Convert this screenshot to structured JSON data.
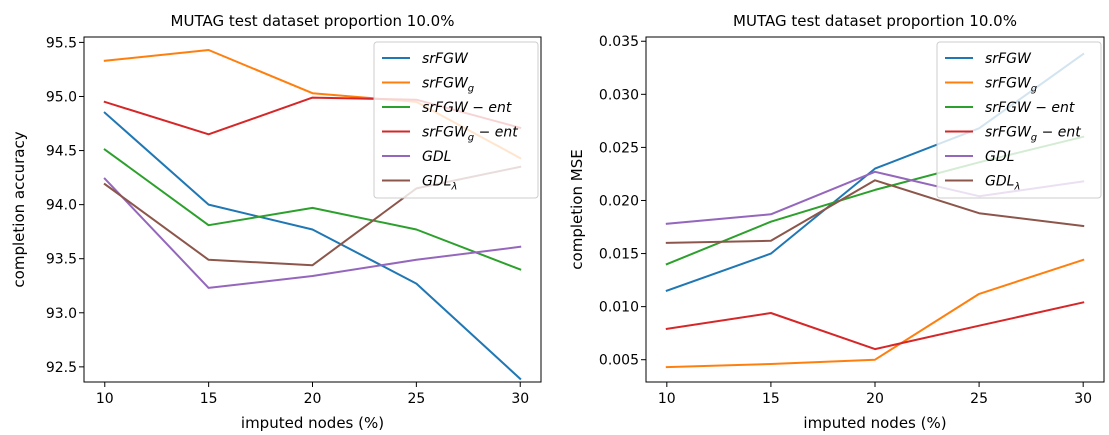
{
  "chart_data": [
    {
      "type": "line",
      "title": "MUTAG test dataset proportion 10.0%",
      "xlabel": "imputed nodes (%)",
      "ylabel": "completion accuracy",
      "x": [
        10,
        15,
        20,
        25,
        30
      ],
      "xlim": [
        9.0,
        31.0
      ],
      "ylim": [
        92.36,
        95.55
      ],
      "xticks": [
        "10",
        "15",
        "20",
        "25",
        "30"
      ],
      "yticks": [
        "92.5",
        "93.0",
        "93.5",
        "94.0",
        "94.5",
        "95.0",
        "95.5"
      ],
      "ytick_values": [
        92.5,
        93.0,
        93.5,
        94.0,
        94.5,
        95.0,
        95.5
      ],
      "legend_position": "top-right",
      "series": [
        {
          "name": "srFGW",
          "color": "#1f77b4",
          "values": [
            94.85,
            94.0,
            93.77,
            93.27,
            92.39
          ]
        },
        {
          "name": "srFGW_g",
          "color": "#ff7f0e",
          "values": [
            95.33,
            95.43,
            95.03,
            94.95,
            94.43
          ]
        },
        {
          "name": "srFGW − ent",
          "color": "#2ca02c",
          "values": [
            94.51,
            93.81,
            93.97,
            93.77,
            93.4
          ]
        },
        {
          "name": "srFGW_g − ent",
          "color": "#d62728",
          "values": [
            94.95,
            94.65,
            94.99,
            94.97,
            94.71
          ]
        },
        {
          "name": "GDL",
          "color": "#9467bd",
          "values": [
            94.24,
            93.23,
            93.34,
            93.49,
            93.61
          ]
        },
        {
          "name": "GDL_λ",
          "color": "#8c564b",
          "values": [
            94.19,
            93.49,
            93.44,
            94.15,
            94.35
          ]
        }
      ]
    },
    {
      "type": "line",
      "title": "MUTAG test dataset proportion 10.0%",
      "xlabel": "imputed nodes (%)",
      "ylabel": "completion MSE",
      "x": [
        10,
        15,
        20,
        25,
        30
      ],
      "xlim": [
        9.0,
        31.0
      ],
      "ylim": [
        0.0029,
        0.0354
      ],
      "xticks": [
        "10",
        "15",
        "20",
        "25",
        "30"
      ],
      "yticks": [
        "0.005",
        "0.010",
        "0.015",
        "0.020",
        "0.025",
        "0.030",
        "0.035"
      ],
      "ytick_values": [
        0.005,
        0.01,
        0.015,
        0.02,
        0.025,
        0.03,
        0.035
      ],
      "legend_position": "top-right",
      "series": [
        {
          "name": "srFGW",
          "color": "#1f77b4",
          "values": [
            0.0115,
            0.015,
            0.023,
            0.0268,
            0.0338
          ]
        },
        {
          "name": "srFGW_g",
          "color": "#ff7f0e",
          "values": [
            0.0043,
            0.0046,
            0.005,
            0.0112,
            0.0144
          ]
        },
        {
          "name": "srFGW − ent",
          "color": "#2ca02c",
          "values": [
            0.014,
            0.018,
            0.021,
            0.0236,
            0.026
          ]
        },
        {
          "name": "srFGW_g − ent",
          "color": "#d62728",
          "values": [
            0.0079,
            0.0094,
            0.006,
            0.0082,
            0.0104
          ]
        },
        {
          "name": "GDL",
          "color": "#9467bd",
          "values": [
            0.0178,
            0.0187,
            0.0227,
            0.0204,
            0.0218
          ]
        },
        {
          "name": "GDL_λ",
          "color": "#8c564b",
          "values": [
            0.016,
            0.0162,
            0.0219,
            0.0188,
            0.0176
          ]
        }
      ]
    }
  ]
}
